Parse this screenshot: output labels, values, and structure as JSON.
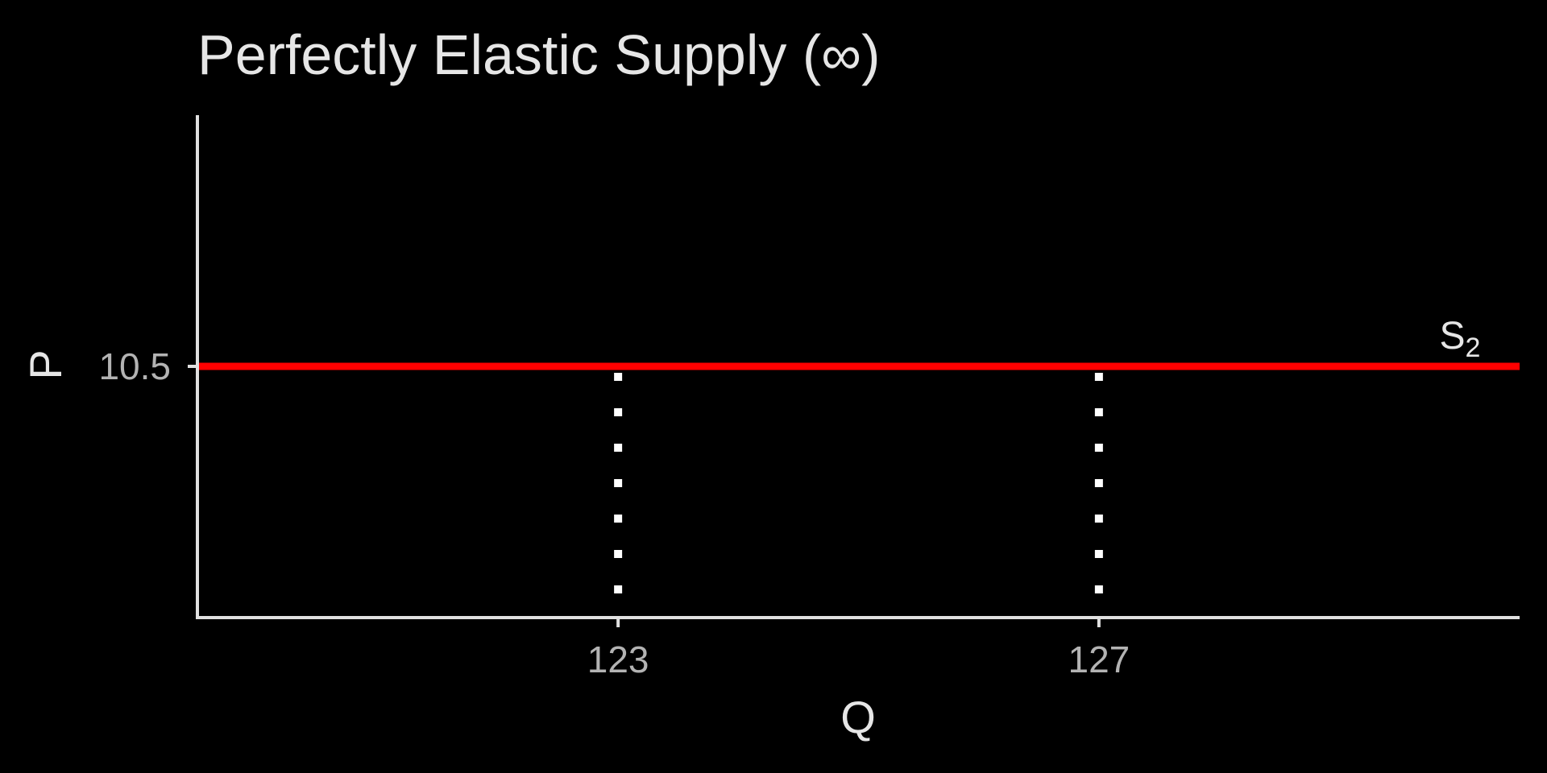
{
  "chart_data": {
    "type": "line",
    "title": "Perfectly Elastic Supply (∞)",
    "xlabel": "Q",
    "ylabel": "P",
    "xlim": [
      119.5,
      130.5
    ],
    "ylim": [
      0,
      21
    ],
    "grid": false,
    "x_ticks": [
      {
        "value": 123,
        "label": "123"
      },
      {
        "value": 127,
        "label": "127"
      }
    ],
    "y_ticks": [
      {
        "value": 10.5,
        "label": "10.5"
      }
    ],
    "series": [
      {
        "name": "S2",
        "label_main": "S",
        "label_sub": "2",
        "kind": "horizontal",
        "y": 10.5,
        "color": "#ff0000"
      }
    ],
    "reference_lines": [
      {
        "kind": "vertical-dotted",
        "x": 123,
        "from_y": 10.5,
        "color": "#ffffff"
      },
      {
        "kind": "vertical-dotted",
        "x": 127,
        "from_y": 10.5,
        "color": "#ffffff"
      }
    ],
    "colors": {
      "background": "#000000",
      "axis": "#e0e0e0",
      "text": "#e6e6e6",
      "tick_text": "#b3b3b3"
    }
  }
}
